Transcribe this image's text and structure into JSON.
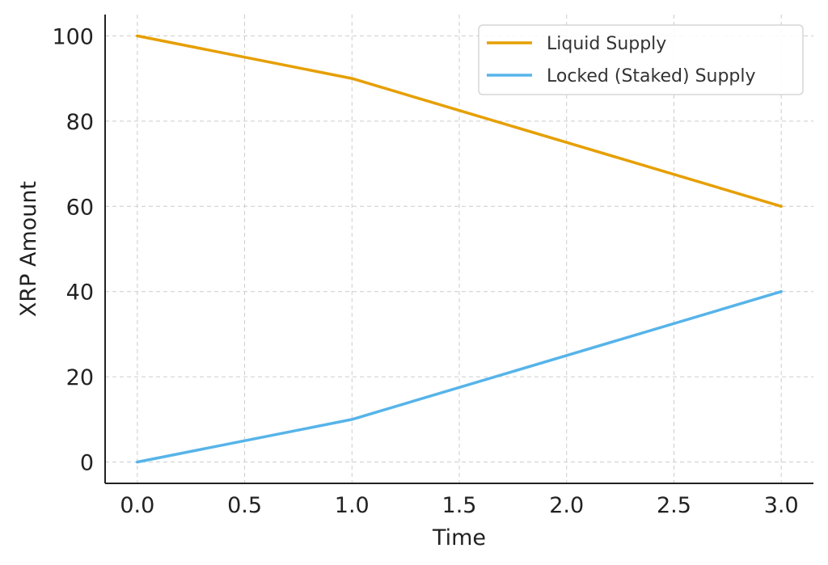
{
  "chart_data": {
    "type": "line",
    "title": "",
    "xlabel": "Time",
    "ylabel": "XRP Amount",
    "xlim": [
      -0.15,
      3.15
    ],
    "ylim": [
      -5,
      105
    ],
    "xticks": [
      0.0,
      0.5,
      1.0,
      1.5,
      2.0,
      2.5,
      3.0
    ],
    "xtick_labels": [
      "0.0",
      "0.5",
      "1.0",
      "1.5",
      "2.0",
      "2.5",
      "3.0"
    ],
    "yticks": [
      0,
      20,
      40,
      60,
      80,
      100
    ],
    "ytick_labels": [
      "0",
      "20",
      "40",
      "60",
      "80",
      "100"
    ],
    "grid": true,
    "legend_position": "top-right",
    "x": [
      0,
      1,
      2,
      3
    ],
    "series": [
      {
        "name": "Liquid Supply",
        "values": [
          100,
          90,
          75,
          60
        ],
        "color": "#E69F00"
      },
      {
        "name": "Locked (Staked) Supply",
        "values": [
          0,
          10,
          25,
          40
        ],
        "color": "#56B4E9"
      }
    ]
  }
}
